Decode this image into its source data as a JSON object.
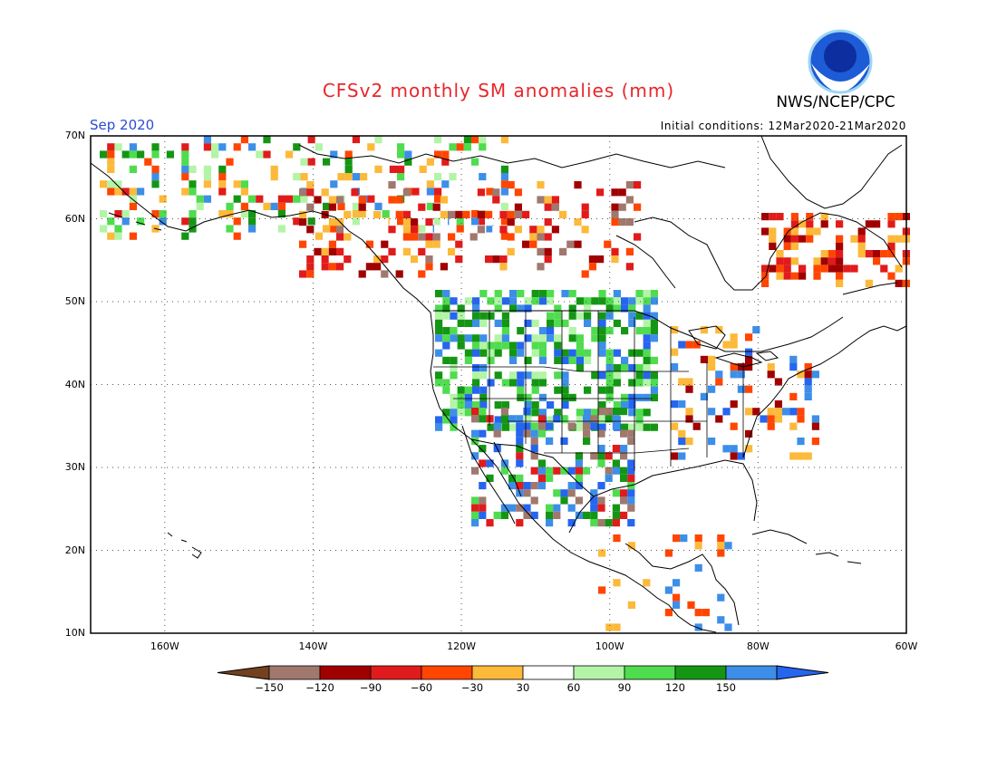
{
  "header": {
    "title": "CFSv2 monthly SM anomalies (mm)",
    "org": "NWS/NCEP/CPC",
    "month": "Sep 2020",
    "initial_conditions": "Initial conditions: 12Mar2020-21Mar2020",
    "logo_text": "NOAA"
  },
  "chart_data": {
    "type": "heatmap",
    "title": "CFSv2 monthly SM anomalies (mm)",
    "subtitle": "Sep 2020",
    "xlabel": "",
    "ylabel": "",
    "xlim": [
      -170,
      -60
    ],
    "ylim": [
      10,
      70
    ],
    "xticks": [
      "160W",
      "140W",
      "120W",
      "100W",
      "80W",
      "60W"
    ],
    "yticks": [
      "10N",
      "20N",
      "30N",
      "40N",
      "50N",
      "60N",
      "70N"
    ],
    "grid": true,
    "colorbar": {
      "ticks": [
        "−150",
        "−120",
        "−90",
        "−60",
        "−30",
        "30",
        "60",
        "90",
        "120",
        "150"
      ],
      "colors": [
        "#74411f",
        "#a0786e",
        "#a00000",
        "#e11b1b",
        "#ff4500",
        "#fcb93a",
        "#ffffff",
        "#b3f4a7",
        "#4fdc4f",
        "#149614",
        "#3d8ee8",
        "#2565f0"
      ]
    }
  }
}
